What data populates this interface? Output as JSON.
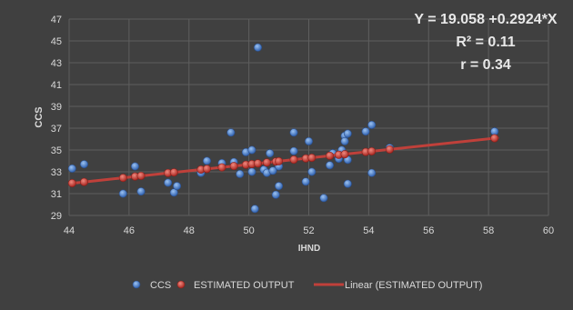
{
  "chart_data": {
    "type": "scatter",
    "xlabel": "IHND",
    "ylabel": "CCS",
    "xlim": [
      44,
      60
    ],
    "ylim": [
      29,
      47
    ],
    "x_ticks": [
      44,
      46,
      48,
      50,
      52,
      54,
      56,
      58,
      60
    ],
    "y_ticks": [
      29,
      31,
      33,
      35,
      37,
      39,
      41,
      43,
      45,
      47
    ],
    "grid": true,
    "legend_position": "bottom",
    "annotations": [
      "Y = 19.058 +0.2924*X",
      "R² = 0.11",
      "r = 0.34"
    ],
    "series": [
      {
        "name": "CCS",
        "kind": "scatter",
        "color": "#4a7fc8",
        "points": [
          [
            44.1,
            33.3
          ],
          [
            44.5,
            33.7
          ],
          [
            45.8,
            31.0
          ],
          [
            46.2,
            33.5
          ],
          [
            46.4,
            31.2
          ],
          [
            47.3,
            32.0
          ],
          [
            47.5,
            31.1
          ],
          [
            47.6,
            31.7
          ],
          [
            48.4,
            32.9
          ],
          [
            48.6,
            34.0
          ],
          [
            49.1,
            33.8
          ],
          [
            49.4,
            36.6
          ],
          [
            49.5,
            33.9
          ],
          [
            49.7,
            32.8
          ],
          [
            49.9,
            34.8
          ],
          [
            50.1,
            35.0
          ],
          [
            50.1,
            33.0
          ],
          [
            50.2,
            29.6
          ],
          [
            50.3,
            44.4
          ],
          [
            50.5,
            33.2
          ],
          [
            50.6,
            32.9
          ],
          [
            50.7,
            34.7
          ],
          [
            50.8,
            33.1
          ],
          [
            50.9,
            30.9
          ],
          [
            51.0,
            31.7
          ],
          [
            51.0,
            33.5
          ],
          [
            51.5,
            36.6
          ],
          [
            51.5,
            34.9
          ],
          [
            51.9,
            32.1
          ],
          [
            52.0,
            35.8
          ],
          [
            52.1,
            33.0
          ],
          [
            52.5,
            30.6
          ],
          [
            52.7,
            33.6
          ],
          [
            52.8,
            34.7
          ],
          [
            53.0,
            34.2
          ],
          [
            53.1,
            35.0
          ],
          [
            53.2,
            36.3
          ],
          [
            53.2,
            35.8
          ],
          [
            53.3,
            36.5
          ],
          [
            53.3,
            34.1
          ],
          [
            53.3,
            31.9
          ],
          [
            53.9,
            36.7
          ],
          [
            54.1,
            37.3
          ],
          [
            54.1,
            32.9
          ],
          [
            54.7,
            35.2
          ],
          [
            58.2,
            36.7
          ]
        ]
      },
      {
        "name": "ESTIMATED OUTPUT",
        "kind": "scatter",
        "color": "#c8342c",
        "points": [
          [
            44.1,
            31.96
          ],
          [
            44.5,
            32.07
          ],
          [
            45.8,
            32.45
          ],
          [
            46.2,
            32.57
          ],
          [
            46.4,
            32.63
          ],
          [
            47.3,
            32.89
          ],
          [
            47.5,
            32.95
          ],
          [
            48.4,
            33.21
          ],
          [
            48.6,
            33.27
          ],
          [
            49.1,
            33.41
          ],
          [
            49.5,
            33.53
          ],
          [
            49.9,
            33.65
          ],
          [
            50.1,
            33.71
          ],
          [
            50.3,
            33.77
          ],
          [
            50.6,
            33.85
          ],
          [
            50.9,
            33.94
          ],
          [
            51.0,
            33.97
          ],
          [
            51.5,
            34.12
          ],
          [
            51.9,
            34.23
          ],
          [
            52.1,
            34.29
          ],
          [
            52.7,
            34.47
          ],
          [
            53.0,
            34.56
          ],
          [
            53.2,
            34.61
          ],
          [
            53.9,
            34.82
          ],
          [
            54.1,
            34.88
          ],
          [
            54.7,
            35.05
          ],
          [
            58.2,
            36.08
          ]
        ]
      },
      {
        "name": "Linear (ESTIMATED OUTPUT)",
        "kind": "line",
        "color": "#c0403a",
        "points": [
          [
            44.1,
            31.95
          ],
          [
            58.3,
            36.11
          ]
        ]
      }
    ]
  }
}
